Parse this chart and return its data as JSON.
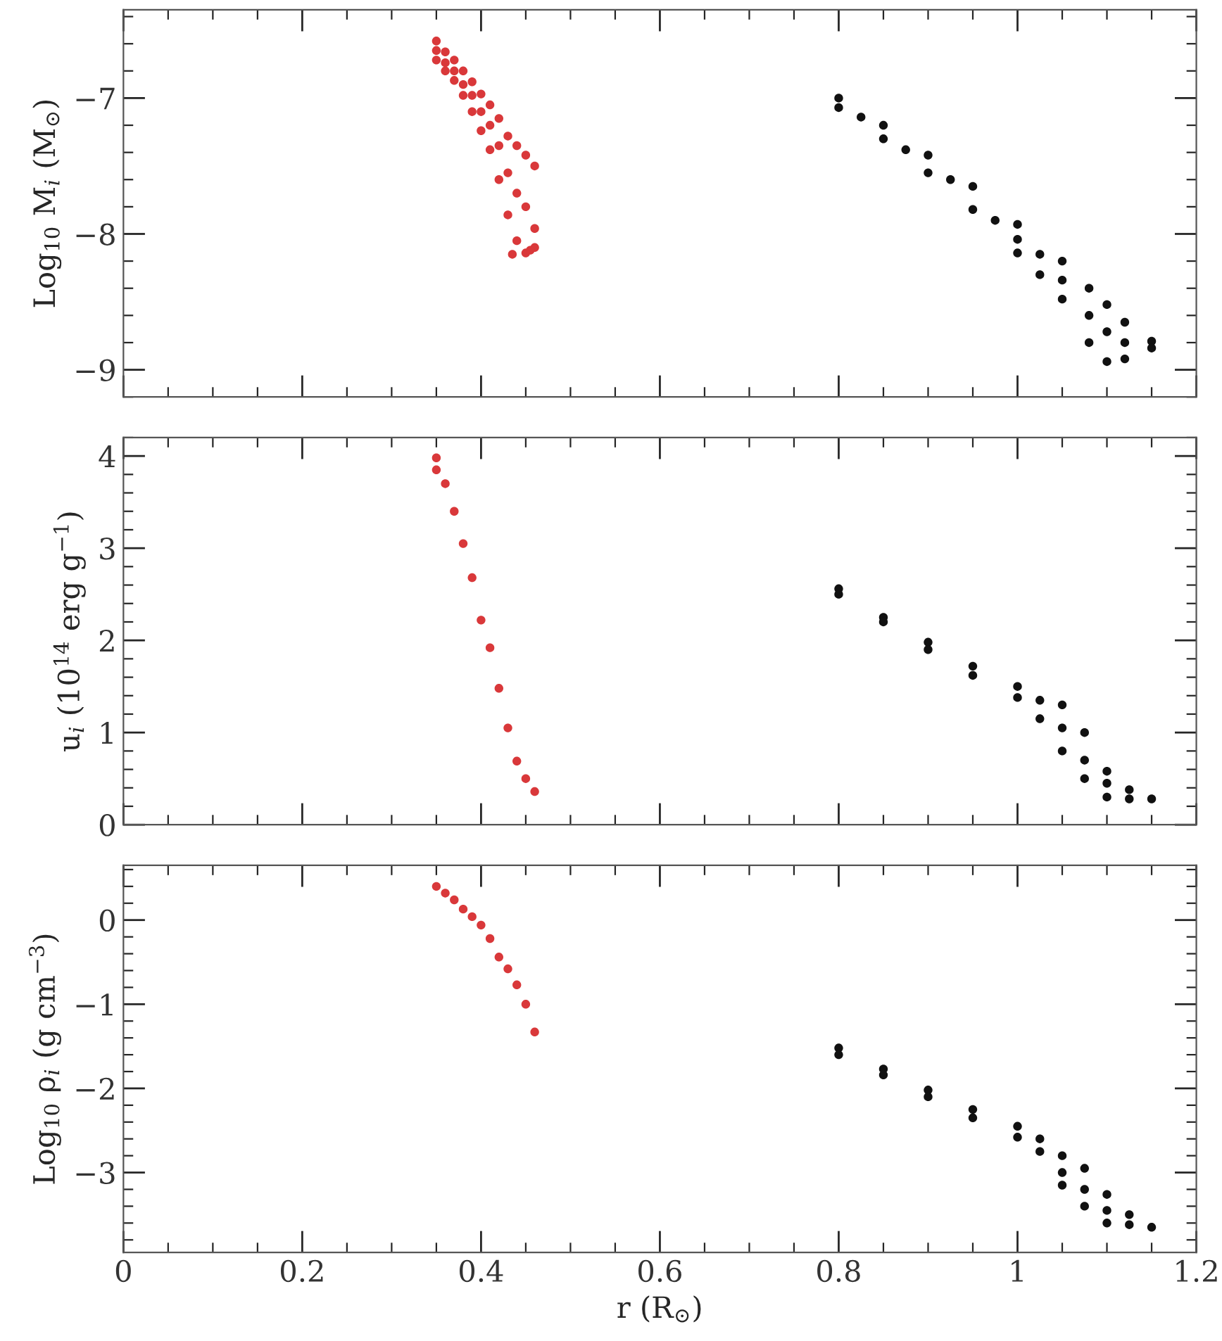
{
  "chart_data": [
    {
      "type": "scatter",
      "ylabel": "Log$_{10}$ M$_{i}$ (M$_{⊙}$)",
      "xlim": [
        0,
        1.2
      ],
      "xticks": [
        0,
        0.2,
        0.4,
        0.6,
        0.8,
        1,
        1.2
      ],
      "ylim": [
        -9.2,
        -6.35
      ],
      "yticks": [
        {
          "value": -9,
          "label": "−9"
        },
        {
          "value": -8,
          "label": "−8"
        },
        {
          "value": -7,
          "label": "−7"
        }
      ],
      "tick_labels": "y",
      "marker": "circle",
      "series": [
        {
          "color": "#d9383a",
          "x": [
            0.35,
            0.35,
            0.35,
            0.36,
            0.36,
            0.36,
            0.37,
            0.37,
            0.37,
            0.38,
            0.38,
            0.38,
            0.39,
            0.39,
            0.39,
            0.4,
            0.4,
            0.4,
            0.41,
            0.41,
            0.41,
            0.42,
            0.42,
            0.42,
            0.43,
            0.43,
            0.43,
            0.44,
            0.44,
            0.44,
            0.45,
            0.45,
            0.45,
            0.46,
            0.46,
            0.46,
            0.455,
            0.435
          ],
          "values": [
            -6.58,
            -6.65,
            -6.72,
            -6.66,
            -6.74,
            -6.8,
            -6.72,
            -6.8,
            -6.87,
            -6.8,
            -6.9,
            -6.98,
            -6.88,
            -6.98,
            -7.1,
            -6.97,
            -7.1,
            -7.24,
            -7.05,
            -7.2,
            -7.38,
            -7.15,
            -7.35,
            -7.6,
            -7.28,
            -7.55,
            -7.86,
            -7.35,
            -7.7,
            -8.05,
            -7.42,
            -7.8,
            -8.14,
            -7.5,
            -7.96,
            -8.1,
            -8.12,
            -8.15
          ]
        },
        {
          "color": "#111111",
          "x": [
            0.8,
            0.8,
            0.825,
            0.85,
            0.85,
            0.875,
            0.9,
            0.9,
            0.925,
            0.95,
            0.95,
            0.975,
            1.0,
            1.0,
            1.0,
            1.025,
            1.025,
            1.05,
            1.05,
            1.05,
            1.08,
            1.08,
            1.08,
            1.1,
            1.1,
            1.1,
            1.12,
            1.12,
            1.12,
            1.15,
            1.15
          ],
          "values": [
            -7.0,
            -7.07,
            -7.14,
            -7.2,
            -7.3,
            -7.38,
            -7.42,
            -7.55,
            -7.6,
            -7.65,
            -7.82,
            -7.9,
            -7.93,
            -8.04,
            -8.14,
            -8.15,
            -8.3,
            -8.2,
            -8.34,
            -8.48,
            -8.4,
            -8.6,
            -8.8,
            -8.52,
            -8.72,
            -8.94,
            -8.65,
            -8.8,
            -8.92,
            -8.79,
            -8.84
          ]
        }
      ]
    },
    {
      "type": "scatter",
      "ylabel": "u$_{i}$ (10$^{14}$ erg g$^{−1}$)",
      "xlim": [
        0,
        1.2
      ],
      "xticks": [
        0,
        0.2,
        0.4,
        0.6,
        0.8,
        1,
        1.2
      ],
      "ylim": [
        0,
        4.2
      ],
      "yticks": [
        0,
        1,
        2,
        3,
        4
      ],
      "tick_labels": "y",
      "marker": "circle",
      "series": [
        {
          "color": "#d9383a",
          "x": [
            0.35,
            0.35,
            0.36,
            0.37,
            0.38,
            0.39,
            0.4,
            0.41,
            0.42,
            0.43,
            0.44,
            0.45,
            0.46
          ],
          "values": [
            3.98,
            3.85,
            3.7,
            3.4,
            3.05,
            2.68,
            2.22,
            1.92,
            1.48,
            1.05,
            0.69,
            0.5,
            0.36
          ]
        },
        {
          "color": "#111111",
          "x": [
            0.8,
            0.8,
            0.85,
            0.85,
            0.9,
            0.9,
            0.95,
            0.95,
            1.0,
            1.0,
            1.025,
            1.025,
            1.05,
            1.05,
            1.05,
            1.075,
            1.075,
            1.075,
            1.1,
            1.1,
            1.1,
            1.125,
            1.125,
            1.15
          ],
          "values": [
            2.56,
            2.5,
            2.25,
            2.2,
            1.98,
            1.9,
            1.72,
            1.62,
            1.5,
            1.38,
            1.35,
            1.15,
            1.3,
            1.05,
            0.8,
            1.0,
            0.7,
            0.5,
            0.58,
            0.45,
            0.3,
            0.38,
            0.28,
            0.28
          ]
        }
      ]
    },
    {
      "type": "scatter",
      "xlabel": "r (R$_{⊙}$)",
      "ylabel": "Log$_{10}$ ρ$_{i}$ (g cm$^{−3}$)",
      "xlim": [
        0,
        1.2
      ],
      "xticks": [
        0,
        0.2,
        0.4,
        0.6,
        0.8,
        1,
        1.2
      ],
      "ylim": [
        -3.95,
        0.65
      ],
      "yticks": [
        {
          "value": -3,
          "label": "−3"
        },
        {
          "value": -2,
          "label": "−2"
        },
        {
          "value": -1,
          "label": "−1"
        },
        0
      ],
      "marker": "circle",
      "series": [
        {
          "color": "#d9383a",
          "x": [
            0.35,
            0.36,
            0.37,
            0.38,
            0.39,
            0.4,
            0.41,
            0.42,
            0.43,
            0.44,
            0.45,
            0.46
          ],
          "values": [
            0.4,
            0.32,
            0.24,
            0.13,
            0.04,
            -0.06,
            -0.22,
            -0.44,
            -0.58,
            -0.77,
            -1.0,
            -1.33
          ]
        },
        {
          "color": "#111111",
          "x": [
            0.8,
            0.8,
            0.85,
            0.85,
            0.9,
            0.9,
            0.95,
            0.95,
            1.0,
            1.0,
            1.025,
            1.025,
            1.05,
            1.05,
            1.05,
            1.075,
            1.075,
            1.075,
            1.1,
            1.1,
            1.1,
            1.125,
            1.125,
            1.15
          ],
          "values": [
            -1.52,
            -1.6,
            -1.77,
            -1.84,
            -2.02,
            -2.1,
            -2.25,
            -2.35,
            -2.45,
            -2.58,
            -2.6,
            -2.75,
            -2.8,
            -3.0,
            -3.15,
            -2.95,
            -3.2,
            -3.4,
            -3.26,
            -3.45,
            -3.6,
            -3.5,
            -3.62,
            -3.65
          ]
        }
      ]
    }
  ]
}
